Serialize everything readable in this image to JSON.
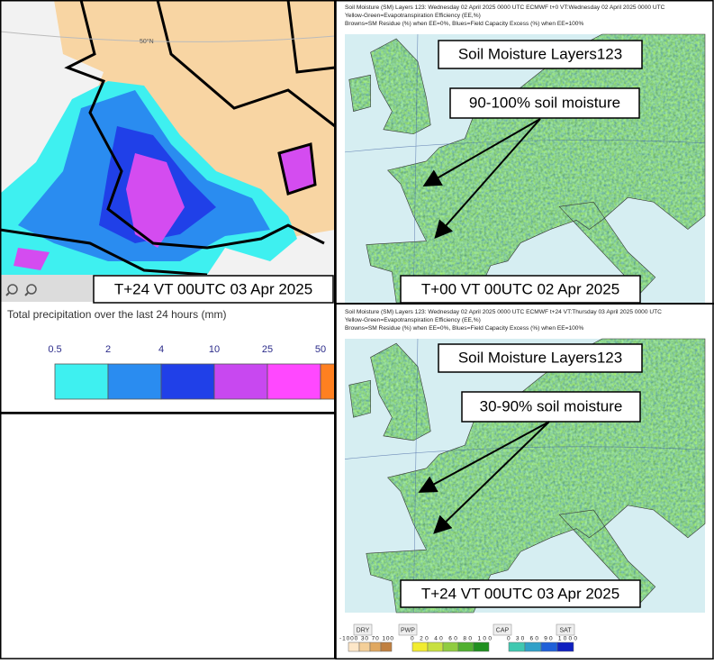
{
  "left_panel": {
    "latitude_label": "50°N",
    "valid_time": "T+24 VT 00UTC 03 Apr 2025",
    "legend_title": "Total precipitation over the last 24 hours (mm)",
    "legend_ticks": [
      "0.5",
      "2",
      "4",
      "10",
      "25",
      "50"
    ]
  },
  "top_right_panel": {
    "header": [
      "Soil Moisture (SM) Layers 123: Wednesday 02 April 2025 0000 UTC   ECMWF  t+0  VT:Wednesday 02 April 2025 0000 UTC",
      "Yellow-Green=Evapotranspiration Efficiency (EE,%)",
      "Browns=SM Residue (%) when EE=0%, Blues=Field Capacity Excess (%) when EE=100%"
    ],
    "title": "Soil Moisture Layers123",
    "annotation": "90-100% soil moisture",
    "valid_time": "T+00 VT 00UTC 02 Apr 2025"
  },
  "bottom_right_panel": {
    "header": [
      "Soil Moisture (SM) Layers 123: Wednesday 02 April 2025 0000 UTC   ECMWF  t+24  VT:Thursday 03 April 2025 0000 UTC",
      "Yellow-Green=Evapotranspiration Efficiency (EE,%)",
      "Browns=SM Residue (%) when EE=0%, Blues=Field Capacity Excess (%) when EE=100%"
    ],
    "title": "Soil Moisture Layers123",
    "annotation": "30-90% soil moisture",
    "valid_time": "T+24 VT 00UTC 03 Apr 2025",
    "legend": {
      "groups": [
        "DRY",
        "PWP",
        "CAP",
        "SAT"
      ],
      "ticks": [
        "-1000 30  70 100",
        "0  20  40  60  80 100",
        "0   30  60  90 1000"
      ]
    }
  }
}
